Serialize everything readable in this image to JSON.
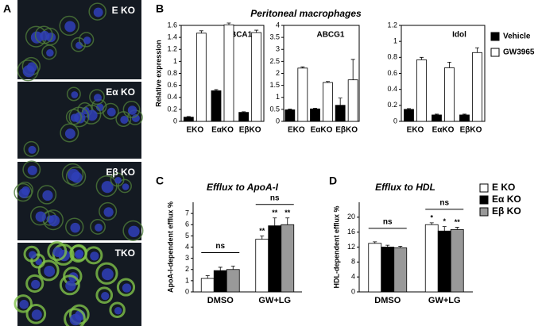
{
  "figure": {
    "panel_labels": [
      "A",
      "B",
      "C",
      "D"
    ],
    "panel_a": {
      "images": [
        {
          "label": "E KO"
        },
        {
          "label": "Eα KO"
        },
        {
          "label": "Eβ KO"
        },
        {
          "label": "TKO"
        }
      ]
    },
    "panel_b_title": "Peritoneal macrophages"
  },
  "chart_data": [
    {
      "type": "bar",
      "title": "ABCA1",
      "ylabel": "Relative expression",
      "categories": [
        "EKO",
        "EαKO",
        "EβKO"
      ],
      "ylim": [
        0,
        1.6
      ],
      "yticks": [
        0,
        0.2,
        0.4,
        0.6,
        0.8,
        1,
        1.2,
        1.4,
        1.6
      ],
      "frame": true,
      "series": [
        {
          "name": "Vehicle",
          "color": "#000000",
          "values": [
            0.07,
            0.51,
            0.15
          ],
          "errors": [
            0.01,
            0.02,
            0.01
          ]
        },
        {
          "name": "GW3965",
          "color": "#ffffff",
          "values": [
            1.47,
            1.61,
            1.48
          ],
          "errors": [
            0.04,
            0.03,
            0.04
          ]
        }
      ]
    },
    {
      "type": "bar",
      "title": "ABCG1",
      "categories": [
        "EKO",
        "EαKO",
        "EβKO"
      ],
      "ylim": [
        0,
        4
      ],
      "yticks": [
        0,
        0.5,
        1,
        1.5,
        2,
        2.5,
        3,
        3.5,
        4
      ],
      "frame": true,
      "series": [
        {
          "color": "#000000",
          "values": [
            0.48,
            0.52,
            0.67
          ],
          "errors": [
            0.03,
            0.03,
            0.3
          ]
        },
        {
          "color": "#ffffff",
          "values": [
            2.22,
            1.62,
            1.73
          ],
          "errors": [
            0.05,
            0.04,
            0.85
          ]
        }
      ]
    },
    {
      "type": "bar",
      "title": "Idol",
      "categories": [
        "EKO",
        "EαKO",
        "EβKO"
      ],
      "ylim": [
        0,
        1.2
      ],
      "yticks": [
        0,
        0.2,
        0.4,
        0.6,
        0.8,
        1,
        1.2
      ],
      "frame": true,
      "series": [
        {
          "color": "#000000",
          "values": [
            0.15,
            0.08,
            0.08
          ],
          "errors": [
            0.01,
            0.01,
            0.01
          ]
        },
        {
          "color": "#ffffff",
          "values": [
            0.77,
            0.67,
            0.86
          ],
          "errors": [
            0.03,
            0.07,
            0.06
          ]
        }
      ]
    },
    {
      "type": "bar",
      "title": "Efflux to ApoA-I",
      "ylabel": "ApoA-I-dependent efflux %",
      "categories": [
        "DMSO",
        "GW+LG"
      ],
      "ylim": [
        0,
        8
      ],
      "yticks": [
        0,
        1,
        2,
        3,
        4,
        5,
        6,
        7
      ],
      "frame": false,
      "brackets": [
        "ns",
        "ns"
      ],
      "series": [
        {
          "color": "#ffffff",
          "values": [
            1.2,
            4.7
          ],
          "errors": [
            0.25,
            0.3
          ],
          "sig_labels": [
            null,
            "**"
          ]
        },
        {
          "color": "#000000",
          "values": [
            1.9,
            5.9
          ],
          "errors": [
            0.3,
            0.7
          ],
          "sig_labels": [
            null,
            "**"
          ]
        },
        {
          "color": "#999999",
          "values": [
            2.0,
            6.0
          ],
          "errors": [
            0.3,
            0.6
          ],
          "sig_labels": [
            null,
            "**"
          ]
        }
      ]
    },
    {
      "type": "bar",
      "title": "Efflux to HDL",
      "ylabel": "HDL-dependent efflux %",
      "categories": [
        "DMSO",
        "GW+LG"
      ],
      "ylim": [
        0,
        24
      ],
      "yticks": [
        0,
        4,
        8,
        12,
        16,
        20
      ],
      "frame": false,
      "brackets": [
        "ns",
        "ns"
      ],
      "series": [
        {
          "name": "E KO",
          "color": "#ffffff",
          "values": [
            13,
            18
          ],
          "errors": [
            0.4,
            0.5
          ],
          "sig_labels": [
            null,
            "*"
          ]
        },
        {
          "name": "Eα KO",
          "color": "#000000",
          "values": [
            12,
            16.3
          ],
          "errors": [
            0.5,
            1.2
          ],
          "sig_labels": [
            null,
            "*"
          ]
        },
        {
          "name": "Eβ KO",
          "color": "#999999",
          "values": [
            11.8,
            16.7
          ],
          "errors": [
            0.4,
            0.6
          ],
          "sig_labels": [
            null,
            "**"
          ]
        }
      ]
    }
  ]
}
